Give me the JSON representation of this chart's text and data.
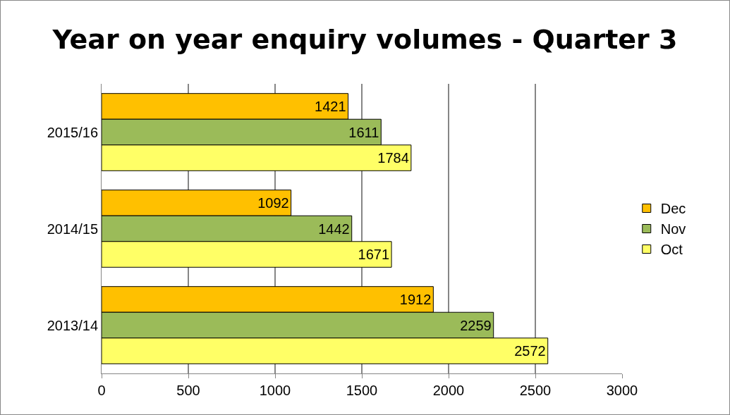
{
  "chart_data": {
    "type": "bar",
    "orientation": "horizontal",
    "title": "Year on year enquiry volumes - Quarter 3",
    "categories": [
      "2015/16",
      "2014/15",
      "2013/14"
    ],
    "series": [
      {
        "name": "Dec",
        "color": "#ffc000",
        "values": [
          1421,
          1092,
          1912
        ]
      },
      {
        "name": "Nov",
        "color": "#9bbb59",
        "values": [
          1611,
          1442,
          2259
        ]
      },
      {
        "name": "Oct",
        "color": "#ffff66",
        "values": [
          1784,
          1671,
          2572
        ]
      }
    ],
    "xlim": [
      0,
      3000
    ],
    "xticks": [
      0,
      500,
      1000,
      1500,
      2000,
      2500,
      3000
    ],
    "grid": "x",
    "legend": "right",
    "data_labels": true
  }
}
